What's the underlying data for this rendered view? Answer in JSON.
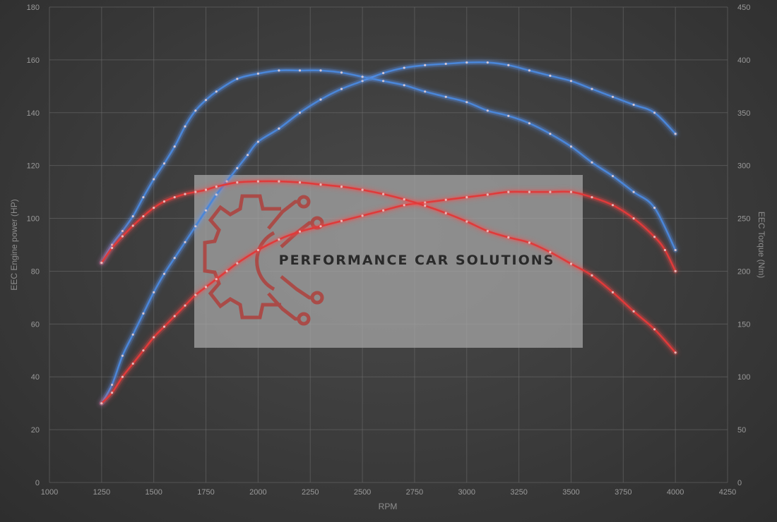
{
  "watermark": {
    "brand_text": "PERFORMANCE CAR SOLUTIONS",
    "logo_icon": "gear-circuit-logo-icon",
    "panel_color": "#a9a9a9",
    "logo_color": "#b23a35"
  },
  "chart_data": {
    "type": "line",
    "title": "",
    "xlabel": "RPM",
    "ylabel_left": "EEC Engine power (HP)",
    "ylabel_right": "EEC Torque (Nm)",
    "xlim": [
      1000,
      4250
    ],
    "ylim_left": [
      0,
      180
    ],
    "ylim_right": [
      0,
      450
    ],
    "x_ticks": [
      "1000",
      "1250",
      "1500",
      "1750",
      "2000",
      "2250",
      "2500",
      "2750",
      "3000",
      "3250",
      "3500",
      "3750",
      "4000",
      "4250"
    ],
    "y_left_ticks": [
      "0",
      "20",
      "40",
      "60",
      "80",
      "100",
      "120",
      "140",
      "160",
      "180"
    ],
    "y_right_ticks": [
      "0",
      "50",
      "100",
      "150",
      "200",
      "250",
      "300",
      "350",
      "400",
      "450"
    ],
    "grid": true,
    "colors": {
      "tuned": "#4a86d8",
      "stock": "#e03a3a",
      "glow_tuned": "#5f9cff",
      "glow_stock": "#ff4a4a"
    },
    "series": [
      {
        "key": "tuned_power",
        "color_key": "tuned",
        "axis": "left",
        "x": [
          1250,
          1300,
          1350,
          1400,
          1450,
          1500,
          1550,
          1600,
          1650,
          1700,
          1750,
          1800,
          1850,
          1900,
          1950,
          2000,
          2100,
          2200,
          2300,
          2400,
          2500,
          2600,
          2700,
          2800,
          2900,
          3000,
          3100,
          3200,
          3300,
          3400,
          3500,
          3600,
          3700,
          3800,
          3900,
          4000
        ],
        "y": [
          30,
          37,
          48,
          56,
          64,
          72,
          79,
          85,
          91,
          97,
          103,
          109,
          114,
          119,
          124,
          129,
          134,
          140,
          145,
          149,
          152,
          155,
          157,
          158,
          158.5,
          159,
          159,
          158,
          156,
          154,
          152,
          149,
          146,
          143,
          140,
          132
        ]
      },
      {
        "key": "tuned_torque",
        "color_key": "tuned",
        "axis": "right",
        "x": [
          1250,
          1300,
          1350,
          1400,
          1450,
          1500,
          1550,
          1600,
          1650,
          1700,
          1750,
          1800,
          1900,
          2000,
          2100,
          2200,
          2300,
          2400,
          2500,
          2600,
          2700,
          2800,
          2900,
          3000,
          3100,
          3200,
          3300,
          3400,
          3500,
          3600,
          3700,
          3800,
          3900,
          4000
        ],
        "y": [
          208,
          225,
          238,
          252,
          270,
          287,
          302,
          318,
          337,
          352,
          362,
          370,
          382,
          387,
          390,
          390,
          390,
          388,
          384,
          380,
          376,
          370,
          365,
          360,
          352,
          347,
          340,
          330,
          318,
          303,
          290,
          275,
          260,
          220
        ]
      },
      {
        "key": "stock_power",
        "color_key": "stock",
        "axis": "left",
        "x": [
          1250,
          1300,
          1350,
          1400,
          1450,
          1500,
          1550,
          1600,
          1650,
          1700,
          1750,
          1800,
          1850,
          1900,
          2000,
          2100,
          2200,
          2300,
          2400,
          2500,
          2600,
          2700,
          2800,
          2900,
          3000,
          3100,
          3200,
          3300,
          3400,
          3500,
          3600,
          3700,
          3800,
          3900,
          3950,
          4000
        ],
        "y": [
          30,
          34,
          40,
          45,
          50,
          55,
          59,
          63,
          67,
          71,
          74,
          77,
          80,
          83,
          88,
          92,
          95,
          97,
          99,
          101,
          103,
          105,
          106,
          107,
          108,
          109,
          110,
          110,
          110,
          110,
          108,
          105,
          100,
          93,
          88,
          80
        ]
      },
      {
        "key": "stock_torque",
        "color_key": "stock",
        "axis": "right",
        "x": [
          1250,
          1300,
          1350,
          1400,
          1450,
          1500,
          1550,
          1600,
          1650,
          1700,
          1750,
          1800,
          1900,
          2000,
          2100,
          2200,
          2300,
          2400,
          2500,
          2600,
          2700,
          2800,
          2900,
          3000,
          3100,
          3200,
          3300,
          3400,
          3500,
          3600,
          3700,
          3800,
          3900,
          4000
        ],
        "y": [
          208,
          222,
          233,
          243,
          252,
          260,
          266,
          270,
          273,
          275,
          277,
          280,
          284,
          285,
          285,
          284,
          282,
          280,
          277,
          273,
          268,
          262,
          255,
          247,
          238,
          232,
          227,
          218,
          207,
          196,
          180,
          162,
          145,
          123
        ]
      }
    ]
  }
}
